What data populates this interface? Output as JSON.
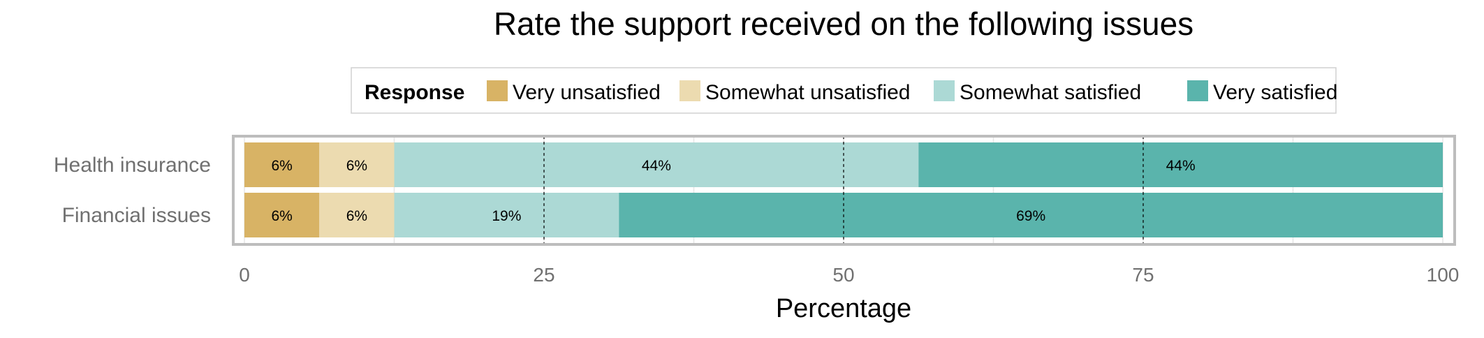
{
  "chart_data": {
    "type": "bar",
    "orientation": "horizontal",
    "stacked": true,
    "title": "Rate the support received on the following issues",
    "xlabel": "Percentage",
    "ylabel": "",
    "xlim": [
      0,
      100
    ],
    "xticks": [
      0,
      25,
      50,
      75,
      100
    ],
    "grid": true,
    "legend": {
      "title": "Response",
      "placement": "top",
      "entries": [
        "Very unsatisfied",
        "Somewhat unsatisfied",
        "Somewhat satisfied",
        "Very satisfied"
      ]
    },
    "categories": [
      "Health insurance",
      "Financial issues"
    ],
    "series": [
      {
        "name": "Very unsatisfied",
        "color": "#d8b365",
        "values": [
          6.25,
          6.25
        ],
        "labels": [
          "6%",
          "6%"
        ]
      },
      {
        "name": "Somewhat unsatisfied",
        "color": "#ecdbb0",
        "values": [
          6.25,
          6.25
        ],
        "labels": [
          "6%",
          "6%"
        ]
      },
      {
        "name": "Somewhat satisfied",
        "color": "#acd9d5",
        "values": [
          43.75,
          18.75
        ],
        "labels": [
          "44%",
          "19%"
        ]
      },
      {
        "name": "Very satisfied",
        "color": "#5ab4ac",
        "values": [
          43.75,
          68.75
        ],
        "labels": [
          "44%",
          "69%"
        ]
      }
    ]
  }
}
